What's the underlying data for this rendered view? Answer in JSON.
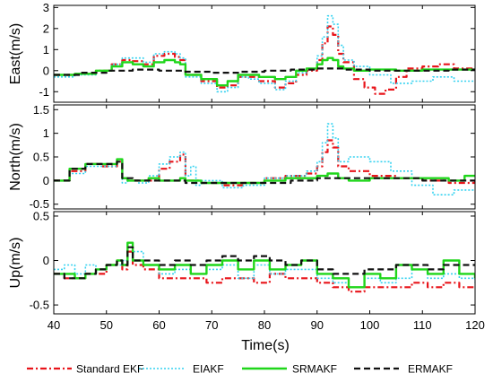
{
  "chart_data": {
    "type": "line",
    "xlabel": "Time(s)",
    "xlim": [
      40,
      120
    ],
    "xticks": [
      40,
      50,
      60,
      70,
      80,
      90,
      100,
      110,
      120
    ],
    "legend_position": "bottom",
    "grid": false,
    "series_styles": [
      {
        "name": "Standard EKF",
        "color": "#e8141a",
        "dash": "7,3,2,3",
        "width": 2.2
      },
      {
        "name": "EIAKF",
        "color": "#34d2f0",
        "dash": "2,2",
        "width": 1.6
      },
      {
        "name": "SRMAKF",
        "color": "#1fd61a",
        "dash": "",
        "width": 2.4
      },
      {
        "name": "ERMAKF",
        "color": "#111111",
        "dash": "7,4",
        "width": 2.2
      }
    ],
    "panels": [
      {
        "ylabel": "East(m/s)",
        "ylim": [
          -1.5,
          3.1
        ],
        "yticks": [
          -1,
          0,
          1,
          2,
          3
        ],
        "ytick_labels": [
          "-1",
          "0",
          "1",
          "2",
          "3"
        ],
        "series": [
          {
            "name": "Standard EKF",
            "x": [
              40,
              44,
              48,
              51,
              53,
              55,
              57,
              59,
              61,
              63,
              64,
              65,
              68,
              71,
              73,
              75,
              77,
              79,
              82,
              84,
              86,
              88,
              90,
              91,
              92,
              93,
              94,
              95,
              97,
              99,
              101,
              103,
              105,
              107,
              110,
              113,
              116,
              120
            ],
            "y": [
              -0.2,
              -0.15,
              0,
              0.3,
              0.5,
              0.45,
              0.3,
              0.7,
              0.8,
              0.65,
              0.5,
              -0.2,
              -0.5,
              -0.8,
              -0.7,
              -0.3,
              -0.3,
              -0.5,
              -0.8,
              -0.6,
              -0.2,
              0,
              0.5,
              1.3,
              2.1,
              1.7,
              0.8,
              0.4,
              -0.4,
              -0.8,
              -1.1,
              -0.9,
              -0.3,
              0.1,
              0.2,
              0.3,
              0.1,
              0.05
            ]
          },
          {
            "name": "EIAKF",
            "x": [
              40,
              44,
              48,
              51,
              53,
              55,
              57,
              59,
              61,
              63,
              64,
              65,
              68,
              71,
              73,
              75,
              77,
              79,
              82,
              84,
              86,
              88,
              90,
              91,
              92,
              93,
              94,
              95,
              97,
              100,
              104,
              108,
              112,
              116,
              120
            ],
            "y": [
              -0.3,
              -0.2,
              0,
              0.3,
              0.6,
              0.6,
              0.4,
              0.8,
              0.9,
              0.8,
              0.6,
              -0.3,
              -0.6,
              -1,
              -0.8,
              -0.3,
              -0.4,
              -0.6,
              -0.9,
              -0.5,
              -0.1,
              0.1,
              0.7,
              1.6,
              2.6,
              2.2,
              1.2,
              0.5,
              0.2,
              -0.2,
              -0.6,
              -0.5,
              -0.3,
              -0.5,
              -0.5
            ]
          },
          {
            "name": "SRMAKF",
            "x": [
              40,
              44,
              48,
              51,
              53,
              55,
              57,
              59,
              61,
              63,
              64,
              65,
              68,
              71,
              73,
              75,
              77,
              79,
              82,
              84,
              86,
              88,
              90,
              91,
              92,
              93,
              94,
              95,
              97,
              100,
              105,
              110,
              115,
              120
            ],
            "y": [
              -0.2,
              -0.15,
              0,
              0.2,
              0.4,
              0.3,
              0.2,
              0.4,
              0.5,
              0.4,
              0.3,
              -0.2,
              -0.4,
              -0.7,
              -0.5,
              -0.2,
              -0.2,
              -0.3,
              -0.4,
              -0.3,
              0,
              0.1,
              0.3,
              0.5,
              0.6,
              0.5,
              0.2,
              0.1,
              0,
              0.05,
              0,
              0.05,
              0.05,
              0.05
            ]
          },
          {
            "name": "ERMAKF",
            "x": [
              40,
              45,
              50,
              55,
              60,
              65,
              70,
              75,
              80,
              85,
              90,
              95,
              100,
              105,
              110,
              115,
              120
            ],
            "y": [
              -0.2,
              -0.1,
              0,
              0.05,
              0,
              -0.05,
              -0.1,
              -0.05,
              0,
              0.05,
              0.1,
              0.05,
              0,
              0,
              0,
              0.05,
              0.05
            ]
          }
        ]
      },
      {
        "ylabel": "North(m/s)",
        "ylim": [
          -0.6,
          1.6
        ],
        "yticks": [
          -0.5,
          0,
          0.5,
          1,
          1.5
        ],
        "ytick_labels": [
          "-0.5",
          "0",
          "0.5",
          "1",
          "1.5"
        ],
        "series": [
          {
            "name": "Standard EKF",
            "x": [
              40,
              43,
              46,
              49,
              52,
              53,
              54,
              58,
              60,
              62,
              64,
              65,
              68,
              72,
              76,
              80,
              84,
              88,
              90,
              91,
              92,
              93,
              94,
              96,
              100,
              105,
              110,
              115,
              120
            ],
            "y": [
              0,
              0.2,
              0.35,
              0.3,
              0.4,
              0.05,
              0,
              0,
              0.25,
              0.4,
              0.55,
              0,
              -0.05,
              -0.1,
              -0.05,
              0.05,
              0.1,
              0.15,
              0.3,
              0.6,
              0.85,
              0.7,
              0.3,
              0.2,
              0.1,
              0.05,
              0,
              -0.05,
              0
            ]
          },
          {
            "name": "EIAKF",
            "x": [
              40,
              43,
              46,
              49,
              52,
              53,
              54,
              56,
              58,
              60,
              62,
              64,
              65,
              66,
              67,
              68,
              72,
              76,
              80,
              84,
              88,
              90,
              91,
              92,
              93,
              94,
              96,
              100,
              104,
              108,
              112,
              116,
              120
            ],
            "y": [
              0,
              0.15,
              0.3,
              0.3,
              0.4,
              -0.05,
              0,
              -0.05,
              0.1,
              0.35,
              0.5,
              0.6,
              0.1,
              0.3,
              -0.1,
              0,
              -0.15,
              -0.1,
              0.05,
              0.1,
              0.2,
              0.4,
              0.8,
              1.2,
              0.9,
              0.4,
              0.5,
              0.4,
              0.2,
              -0.1,
              -0.3,
              -0.2,
              -0.2
            ]
          },
          {
            "name": "SRMAKF",
            "x": [
              40,
              43,
              46,
              49,
              52,
              53,
              54,
              58,
              60,
              64,
              65,
              68,
              72,
              76,
              80,
              84,
              88,
              90,
              92,
              94,
              96,
              100,
              105,
              110,
              115,
              118,
              120
            ],
            "y": [
              0,
              0.25,
              0.35,
              0.35,
              0.45,
              0.05,
              0,
              0.05,
              0,
              0.05,
              0,
              -0.05,
              -0.05,
              -0.05,
              0,
              0.05,
              0.05,
              0.1,
              0.15,
              0.05,
              0,
              0.05,
              0.05,
              0.05,
              0,
              0.1,
              0.1
            ]
          },
          {
            "name": "ERMAKF",
            "x": [
              40,
              43,
              46,
              49,
              52,
              53,
              55,
              60,
              65,
              70,
              75,
              80,
              85,
              90,
              95,
              100,
              105,
              110,
              115,
              120
            ],
            "y": [
              0,
              0.25,
              0.35,
              0.35,
              0.4,
              0.05,
              0,
              0,
              -0.05,
              -0.05,
              -0.05,
              -0.05,
              0,
              0.05,
              0.05,
              0.05,
              0.05,
              0,
              0,
              0
            ]
          }
        ]
      },
      {
        "ylabel": "Up(m/s)",
        "ylim": [
          -0.6,
          0.55
        ],
        "yticks": [
          -0.5,
          0,
          0.5
        ],
        "ytick_labels": [
          "-0.5",
          "0",
          "0.5"
        ],
        "series": [
          {
            "name": "Standard EKF",
            "x": [
              40,
              42,
              44,
              46,
              48,
              50,
              52,
              53,
              54,
              55,
              57,
              60,
              63,
              66,
              69,
              72,
              75,
              78,
              81,
              84,
              87,
              90,
              93,
              96,
              99,
              102,
              105,
              108,
              111,
              114,
              117,
              120
            ],
            "y": [
              -0.15,
              -0.2,
              -0.2,
              -0.15,
              -0.15,
              -0.05,
              0,
              -0.1,
              0.1,
              -0.05,
              -0.1,
              -0.2,
              -0.2,
              -0.2,
              -0.25,
              -0.2,
              -0.2,
              -0.25,
              -0.15,
              -0.2,
              -0.2,
              -0.25,
              -0.3,
              -0.35,
              -0.3,
              -0.3,
              -0.3,
              -0.25,
              -0.3,
              -0.25,
              -0.3,
              -0.3
            ]
          },
          {
            "name": "EIAKF",
            "x": [
              40,
              42,
              44,
              46,
              48,
              50,
              52,
              53,
              54,
              55,
              57,
              60,
              63,
              66,
              69,
              72,
              75,
              78,
              81,
              84,
              87,
              90,
              93,
              96,
              99,
              102,
              105,
              108,
              111,
              114,
              117,
              120
            ],
            "y": [
              -0.1,
              -0.05,
              -0.15,
              -0.05,
              -0.1,
              -0.05,
              -0.05,
              0,
              0.15,
              0.1,
              -0.05,
              -0.15,
              -0.1,
              -0.15,
              -0.1,
              -0.05,
              -0.2,
              -0.05,
              -0.15,
              -0.1,
              -0.1,
              -0.2,
              -0.25,
              -0.3,
              -0.2,
              -0.25,
              -0.2,
              -0.1,
              -0.2,
              -0.15,
              -0.2,
              -0.25
            ]
          },
          {
            "name": "SRMAKF",
            "x": [
              40,
              42,
              44,
              46,
              48,
              50,
              52,
              53,
              54,
              55,
              57,
              60,
              63,
              66,
              69,
              72,
              75,
              78,
              81,
              84,
              87,
              90,
              93,
              96,
              99,
              102,
              105,
              108,
              111,
              114,
              117,
              120
            ],
            "y": [
              -0.15,
              -0.15,
              -0.2,
              -0.15,
              -0.1,
              -0.05,
              0,
              -0.05,
              0.2,
              0,
              -0.05,
              -0.1,
              -0.05,
              -0.15,
              -0.05,
              0,
              -0.1,
              0,
              -0.1,
              -0.05,
              0,
              -0.15,
              -0.2,
              -0.3,
              -0.15,
              -0.2,
              -0.05,
              -0.1,
              -0.15,
              0,
              -0.15,
              -0.2
            ]
          },
          {
            "name": "ERMAKF",
            "x": [
              40,
              42,
              44,
              46,
              48,
              50,
              52,
              53,
              54,
              55,
              57,
              60,
              63,
              66,
              69,
              72,
              75,
              78,
              81,
              84,
              87,
              90,
              93,
              96,
              99,
              102,
              105,
              108,
              111,
              114,
              117,
              120
            ],
            "y": [
              -0.15,
              -0.2,
              -0.2,
              -0.15,
              -0.1,
              -0.05,
              0,
              -0.05,
              0.15,
              0,
              0,
              -0.05,
              0,
              -0.05,
              0,
              0.05,
              0,
              0.05,
              0,
              -0.05,
              0,
              -0.1,
              -0.15,
              -0.15,
              -0.1,
              -0.1,
              -0.05,
              -0.05,
              -0.1,
              -0.05,
              -0.05,
              -0.05
            ]
          }
        ]
      }
    ]
  }
}
